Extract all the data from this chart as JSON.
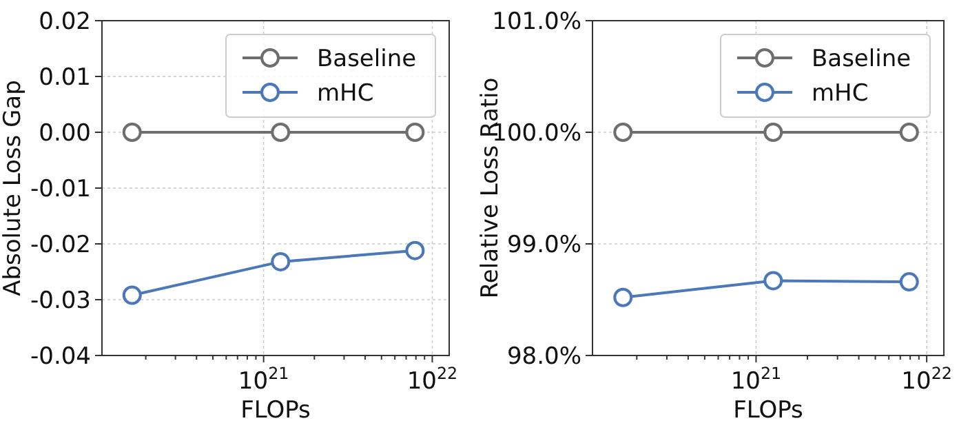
{
  "chart_data": [
    {
      "type": "line",
      "xlabel": "FLOPs",
      "ylabel": "Absolute Loss Gap",
      "log": "x",
      "grid": true,
      "legend": "top right",
      "marker": "circle",
      "line_style": "solid",
      "x": [
        1.66e+20,
        1.26e+21,
        7.9e+21
      ],
      "series": [
        {
          "name": "Baseline",
          "color": "#6e6e6e",
          "values": [
            0,
            0,
            0
          ]
        },
        {
          "name": "mHC",
          "color": "#4a78b8",
          "values": [
            -0.0292,
            -0.0232,
            -0.0212
          ]
        }
      ],
      "xlim": [
        1.1e+20,
        1.26e+22
      ],
      "xticks": [
        {
          "value": 2e+20,
          "label": null
        },
        {
          "value": 3e+20,
          "label": null
        },
        {
          "value": 4e+20,
          "label": null
        },
        {
          "value": 5e+20,
          "label": null
        },
        {
          "value": 6e+20,
          "label": null
        },
        {
          "value": 7e+20,
          "label": null
        },
        {
          "value": 8e+20,
          "label": null
        },
        {
          "value": 9e+20,
          "label": null
        },
        {
          "value": 1e+21,
          "label": "10$^{21}$"
        },
        {
          "value": 2e+21,
          "label": null
        },
        {
          "value": 3e+21,
          "label": null
        },
        {
          "value": 4e+21,
          "label": null
        },
        {
          "value": 5e+21,
          "label": null
        },
        {
          "value": 6e+21,
          "label": null
        },
        {
          "value": 7e+21,
          "label": null
        },
        {
          "value": 8e+21,
          "label": null
        },
        {
          "value": 9e+21,
          "label": null
        },
        {
          "value": 1e+22,
          "label": "10$^{22}$"
        }
      ],
      "ylim": [
        -0.04,
        0.02
      ],
      "yticks": [
        {
          "value": -0.04,
          "label": "-0.04"
        },
        {
          "value": -0.03,
          "label": "-0.03"
        },
        {
          "value": -0.02,
          "label": "-0.02"
        },
        {
          "value": -0.01,
          "label": "-0.01"
        },
        {
          "value": 0,
          "label": "0.00"
        },
        {
          "value": 0.01,
          "label": "0.01"
        },
        {
          "value": 0.02,
          "label": "0.02"
        }
      ]
    },
    {
      "type": "line",
      "xlabel": "FLOPs",
      "ylabel": "Relative Loss Ratio",
      "log": "x",
      "grid": true,
      "legend": "top right",
      "marker": "circle",
      "line_style": "solid",
      "x": [
        1.66e+20,
        1.26e+21,
        7.9e+21
      ],
      "series": [
        {
          "name": "Baseline",
          "color": "#6e6e6e",
          "values": [
            100,
            100,
            100
          ]
        },
        {
          "name": "mHC",
          "color": "#4a78b8",
          "values": [
            98.52,
            98.67,
            98.66
          ]
        }
      ],
      "xlim": [
        1.1e+20,
        1.26e+22
      ],
      "xticks": [
        {
          "value": 2e+20,
          "label": null
        },
        {
          "value": 3e+20,
          "label": null
        },
        {
          "value": 4e+20,
          "label": null
        },
        {
          "value": 5e+20,
          "label": null
        },
        {
          "value": 6e+20,
          "label": null
        },
        {
          "value": 7e+20,
          "label": null
        },
        {
          "value": 8e+20,
          "label": null
        },
        {
          "value": 9e+20,
          "label": null
        },
        {
          "value": 1e+21,
          "label": "10$^{21}$"
        },
        {
          "value": 2e+21,
          "label": null
        },
        {
          "value": 3e+21,
          "label": null
        },
        {
          "value": 4e+21,
          "label": null
        },
        {
          "value": 5e+21,
          "label": null
        },
        {
          "value": 6e+21,
          "label": null
        },
        {
          "value": 7e+21,
          "label": null
        },
        {
          "value": 8e+21,
          "label": null
        },
        {
          "value": 9e+21,
          "label": null
        },
        {
          "value": 1e+22,
          "label": "10$^{22}$"
        }
      ],
      "ylim": [
        98,
        101
      ],
      "yticks": [
        {
          "value": 98,
          "label": "98.0%"
        },
        {
          "value": 99,
          "label": "99.0%"
        },
        {
          "value": 100,
          "label": "100.0%"
        },
        {
          "value": 101,
          "label": "101.0%"
        }
      ]
    }
  ]
}
